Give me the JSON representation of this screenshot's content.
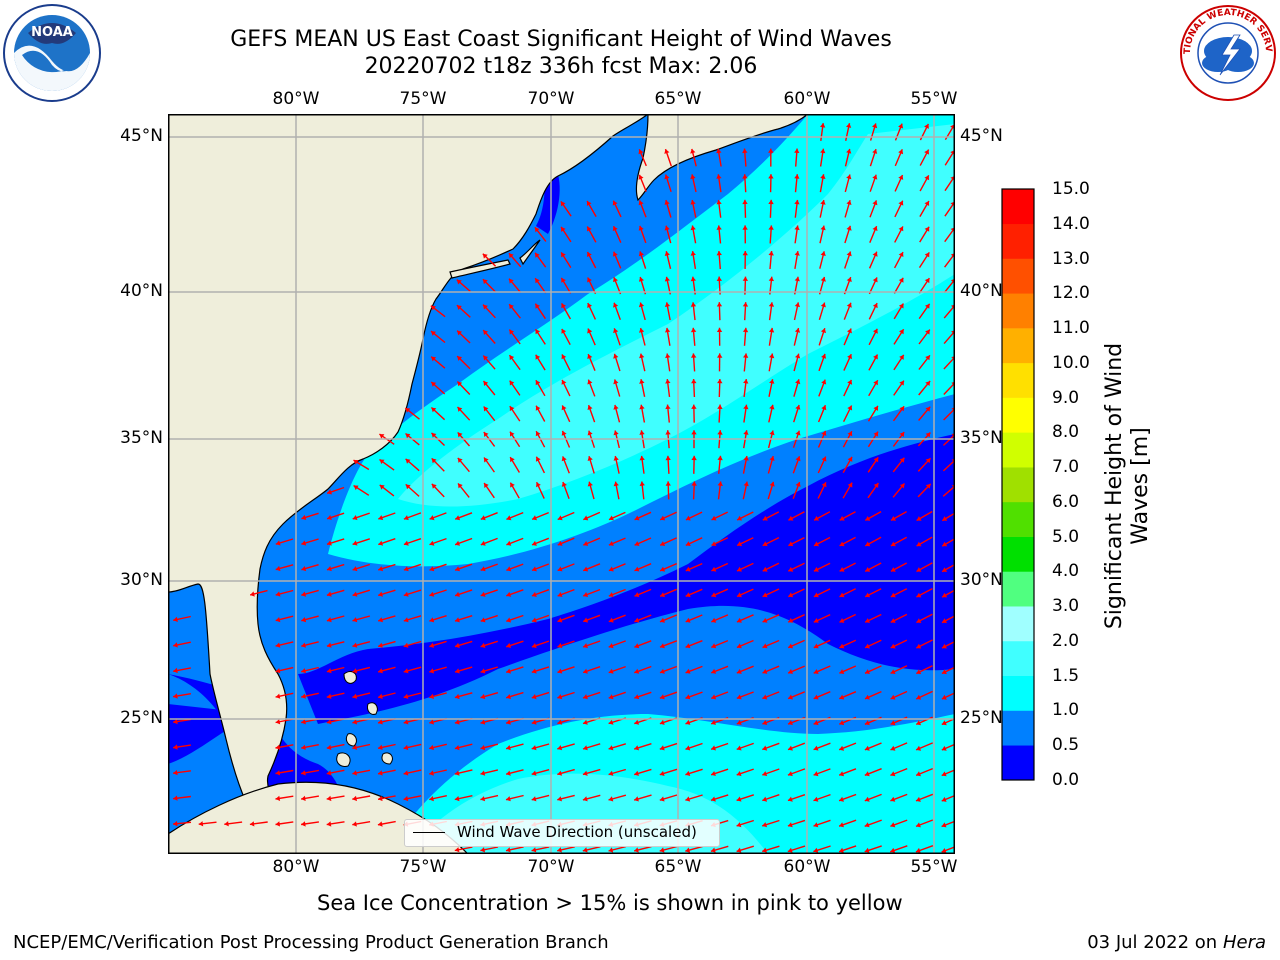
{
  "title": {
    "line1": "GEFS MEAN US East Coast Significant Height of Wind Waves",
    "line2": "20220702 t18z 336h fcst   Max: 2.06"
  },
  "map": {
    "lon_labels": [
      "80°W",
      "75°W",
      "70°W",
      "65°W",
      "60°W",
      "55°W"
    ],
    "lat_labels_left": [
      "45°N",
      "40°N",
      "35°N",
      "30°N",
      "25°N"
    ],
    "lat_labels_right": [
      "45°N",
      "40°N",
      "35°N",
      "30°N",
      "25°N"
    ],
    "legend": "Wind Wave Direction (unscaled)",
    "arrow_color": "#ff0000",
    "land_color": "#efeedb",
    "grid_color": "#b0b0b0"
  },
  "colorbar": {
    "title": "Significant Height of Wind Waves [m]",
    "ticks": [
      "15.0",
      "14.0",
      "13.0",
      "12.0",
      "11.0",
      "10.0",
      "9.0",
      "8.0",
      "7.0",
      "6.0",
      "5.0",
      "4.0",
      "3.0",
      "2.0",
      "1.5",
      "1.0",
      "0.5",
      "0.0"
    ],
    "colors": [
      "#0000ff",
      "#0080ff",
      "#00ffff",
      "#40ffff",
      "#a0ffff",
      "#50ff80",
      "#00e000",
      "#50e000",
      "#a0e000",
      "#d0ff00",
      "#ffff00",
      "#ffe000",
      "#ffb000",
      "#ff8000",
      "#ff5000",
      "#ff2000",
      "#ff0000"
    ]
  },
  "logos": {
    "left_text": "NOAA",
    "right_text": "NATIONAL WEATHER SERVICE"
  },
  "footer": {
    "ice_note": "Sea Ice Concentration > 15% is shown in pink to yellow",
    "left": "NCEP/EMC/Verification Post Processing Product Generation Branch",
    "right_date": "03 Jul 2022 on ",
    "right_host": "Hera"
  }
}
